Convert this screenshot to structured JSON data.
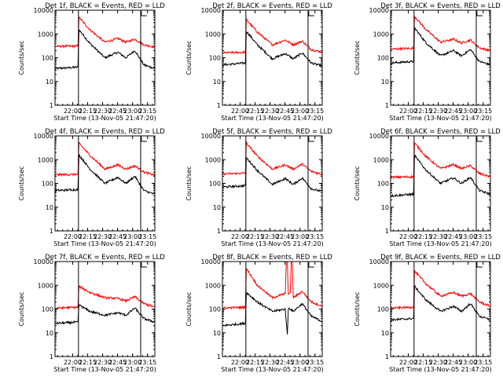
{
  "chart_data": {
    "type": "line",
    "colors": {
      "events": "#000000",
      "lld": "#ff0000",
      "axes": "#000000"
    },
    "ylabel": "Counts/sec",
    "xlabel": "Start Time (13-Nov-05 21:47:20)",
    "yscale": "log",
    "ylim": [
      1,
      10000
    ],
    "yticks": [
      {
        "v": 1,
        "label": "1"
      },
      {
        "v": 10,
        "label": "10"
      },
      {
        "v": 100,
        "label": "100"
      },
      {
        "v": 1000,
        "label": "1000"
      },
      {
        "v": 10000,
        "label": "10000"
      }
    ],
    "xlim_minutes": [
      -5,
      95
    ],
    "xticks": [
      {
        "v": 12.7,
        "label": "22:00"
      },
      {
        "v": 27.7,
        "label": "22:15"
      },
      {
        "v": 42.7,
        "label": "22:30"
      },
      {
        "v": 57.7,
        "label": "22:45"
      },
      {
        "v": 72.7,
        "label": "23:00"
      },
      {
        "v": 87.7,
        "label": "23:15"
      }
    ],
    "panels": [
      {
        "title": "Det 1f, BLACK = Events, RED = LLD",
        "series": [
          {
            "name": "Events",
            "x": [
              -5,
              18,
              19,
              30,
              45,
              58,
              66,
              75,
              84,
              95
            ],
            "y": [
              35,
              40,
              1500,
              400,
              100,
              170,
              100,
              200,
              50,
              35
            ]
          },
          {
            "name": "LLD",
            "x": [
              -5,
              18,
              19,
              30,
              45,
              58,
              66,
              75,
              84,
              95
            ],
            "y": [
              300,
              310,
              5000,
              1500,
              450,
              650,
              450,
              600,
              350,
              280
            ]
          }
        ],
        "vlines": [
          18.5,
          80.8
        ]
      },
      {
        "title": "Det 2f, BLACK = Events, RED = LLD",
        "series": [
          {
            "name": "Events",
            "x": [
              -5,
              18,
              19,
              30,
              45,
              58,
              66,
              75,
              84,
              95
            ],
            "y": [
              50,
              60,
              1300,
              350,
              90,
              150,
              90,
              160,
              60,
              45
            ]
          },
          {
            "name": "LLD",
            "x": [
              -5,
              18,
              19,
              30,
              45,
              58,
              66,
              75,
              84,
              95
            ],
            "y": [
              160,
              170,
              4000,
              1200,
              350,
              550,
              350,
              500,
              220,
              170
            ]
          }
        ],
        "vlines": [
          18.5,
          80.8
        ]
      },
      {
        "title": "Det 3f, BLACK = Events, RED = LLD",
        "series": [
          {
            "name": "Events",
            "x": [
              -5,
              18,
              19,
              30,
              45,
              58,
              66,
              75,
              84,
              95
            ],
            "y": [
              60,
              70,
              1800,
              450,
              120,
              200,
              120,
              220,
              70,
              50
            ]
          },
          {
            "name": "LLD",
            "x": [
              -5,
              18,
              19,
              30,
              45,
              58,
              66,
              75,
              84,
              95
            ],
            "y": [
              230,
              250,
              5500,
              1600,
              450,
              600,
              420,
              550,
              260,
              200
            ]
          }
        ],
        "vlines": [
          18.5,
          80.8
        ]
      },
      {
        "title": "Det 4f, BLACK = Events, RED = LLD",
        "series": [
          {
            "name": "Events",
            "x": [
              -5,
              18,
              19,
              30,
              45,
              58,
              66,
              75,
              84,
              95
            ],
            "y": [
              50,
              55,
              1600,
              400,
              100,
              180,
              100,
              200,
              50,
              35
            ]
          },
          {
            "name": "LLD",
            "x": [
              -5,
              18,
              19,
              30,
              45,
              58,
              66,
              75,
              84,
              95
            ],
            "y": [
              230,
              240,
              5000,
              1500,
              400,
              600,
              400,
              550,
              300,
              220
            ]
          }
        ],
        "vlines": [
          18.5,
          80.8
        ]
      },
      {
        "title": "Det 5f, BLACK = Events, RED = LLD",
        "series": [
          {
            "name": "Events",
            "x": [
              -5,
              18,
              19,
              30,
              45,
              58,
              66,
              75,
              84,
              95
            ],
            "y": [
              70,
              80,
              1200,
              350,
              90,
              160,
              90,
              170,
              60,
              45
            ]
          },
          {
            "name": "LLD",
            "x": [
              -5,
              18,
              19,
              30,
              45,
              58,
              66,
              75,
              84,
              95
            ],
            "y": [
              250,
              270,
              5000,
              1400,
              400,
              600,
              400,
              650,
              320,
              240
            ]
          }
        ],
        "vlines": [
          18.5,
          80.8
        ]
      },
      {
        "title": "Det 6f, BLACK = Events, RED = LLD",
        "series": [
          {
            "name": "Events",
            "x": [
              -5,
              18,
              19,
              30,
              45,
              58,
              66,
              75,
              84,
              95
            ],
            "y": [
              30,
              35,
              1500,
              380,
              100,
              170,
              100,
              180,
              50,
              35
            ]
          },
          {
            "name": "LLD",
            "x": [
              -5,
              18,
              19,
              30,
              45,
              58,
              66,
              75,
              84,
              95
            ],
            "y": [
              180,
              190,
              5000,
              1400,
              420,
              620,
              420,
              560,
              260,
              190
            ]
          }
        ],
        "vlines": [
          18.5,
          80.8
        ]
      },
      {
        "title": "Det 7f, BLACK = Events, RED = LLD",
        "series": [
          {
            "name": "Events",
            "x": [
              -5,
              18,
              19,
              30,
              45,
              58,
              66,
              75,
              84,
              95
            ],
            "y": [
              25,
              28,
              150,
              80,
              55,
              70,
              55,
              110,
              40,
              28
            ]
          },
          {
            "name": "LLD",
            "x": [
              -5,
              18,
              19,
              30,
              45,
              58,
              66,
              75,
              84,
              95
            ],
            "y": [
              110,
              120,
              900,
              500,
              300,
              280,
              220,
              330,
              170,
              120
            ]
          }
        ],
        "vlines": [
          18.5,
          80.8
        ]
      },
      {
        "title": "Det 8f, BLACK = Events, RED = LLD",
        "series": [
          {
            "name": "Events",
            "x": [
              -5,
              18,
              19,
              30,
              45,
              58,
              60,
              61,
              62,
              66,
              75,
              84,
              95
            ],
            "y": [
              20,
              25,
              500,
              200,
              80,
              100,
              8,
              100,
              110,
              80,
              170,
              50,
              30
            ]
          },
          {
            "name": "LLD",
            "x": [
              -5,
              18,
              19,
              30,
              45,
              58,
              59,
              60,
              61,
              63,
              64,
              65,
              66,
              75,
              84,
              95
            ],
            "y": [
              110,
              120,
              5000,
              1000,
              300,
              450,
              10000,
              10000,
              450,
              450,
              10000,
              10000,
              300,
              550,
              200,
              130
            ]
          }
        ],
        "vlines": [
          18.5,
          80.8
        ]
      },
      {
        "title": "Det 9f, BLACK = Events, RED = LLD",
        "series": [
          {
            "name": "Events",
            "x": [
              -5,
              18,
              19,
              30,
              45,
              58,
              66,
              75,
              84,
              95
            ],
            "y": [
              35,
              40,
              900,
              250,
              80,
              130,
              80,
              170,
              50,
              35
            ]
          },
          {
            "name": "LLD",
            "x": [
              -5,
              18,
              19,
              30,
              45,
              58,
              66,
              75,
              84,
              95
            ],
            "y": [
              110,
              120,
              4000,
              1200,
              350,
              500,
              350,
              450,
              200,
              130
            ]
          }
        ],
        "vlines": [
          18.5,
          80.8
        ]
      }
    ]
  }
}
